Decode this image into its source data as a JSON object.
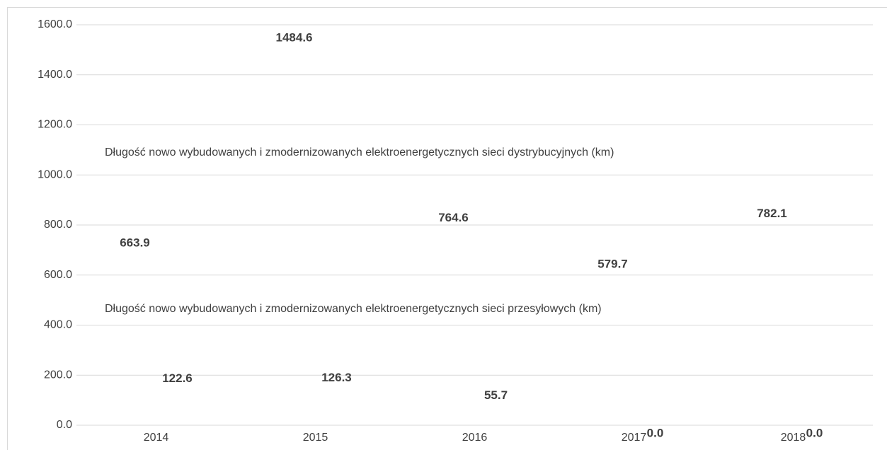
{
  "chart_data": {
    "type": "bar",
    "categories": [
      "2014",
      "2015",
      "2016",
      "2017",
      "2018"
    ],
    "series": [
      {
        "name": "Długość nowo wybudowanych i zmodernizowanych elektroenergetycznych sieci dystrybucyjnych (km)",
        "values": [
          663.9,
          1484.6,
          764.6,
          579.7,
          782.1
        ]
      },
      {
        "name": "Długość nowo wybudowanych i zmodernizowanych elektroenergetycznych sieci przesyłowych (km)",
        "values": [
          122.6,
          126.3,
          55.7,
          0,
          0
        ],
        "value_labels": [
          "122.6",
          "126.3",
          "55.7",
          "0.0",
          "0.0"
        ]
      }
    ],
    "ylim": [
      0,
      1600
    ],
    "yticks": [
      {
        "value": 0,
        "label": "0.0"
      },
      {
        "value": 200,
        "label": "200.0"
      },
      {
        "value": 400,
        "label": "400.0"
      },
      {
        "value": 600,
        "label": "600.0"
      },
      {
        "value": 800,
        "label": "800.0"
      },
      {
        "value": 1000,
        "label": "1000.0"
      },
      {
        "value": 1200,
        "label": "1200.0"
      },
      {
        "value": 1400,
        "label": "1400.0"
      },
      {
        "value": 1600,
        "label": "1600.0"
      }
    ],
    "grid": true
  }
}
